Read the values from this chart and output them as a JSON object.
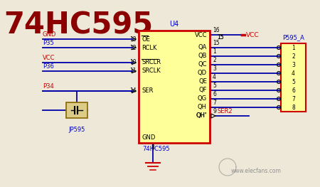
{
  "title": "74HC595",
  "title_color": "#8B0000",
  "bg_color": "#EDE8D8",
  "chip_label": "U4",
  "chip_sublabel": "74HC595",
  "chip_fill": "#FFFF99",
  "chip_edge": "#CC0000",
  "vcc_color": "#CC0000",
  "label_color_blue": "#0000CC",
  "label_color_red": "#CC0000",
  "wire_color": "#0000AA",
  "gnd_color": "#CC0000",
  "watermark": "www.elecfans.com",
  "left_pins": [
    {
      "name": "OE",
      "over": true,
      "pin": 13,
      "ext": "GND",
      "ext_col": "red",
      "gap_before": false
    },
    {
      "name": "RCLK",
      "over": false,
      "pin": 12,
      "ext": "P35",
      "ext_col": "blue",
      "gap_before": false
    },
    {
      "name": "SRCLR",
      "over": true,
      "pin": 10,
      "ext": "VCC",
      "ext_col": "red",
      "gap_before": true
    },
    {
      "name": "SRCLK",
      "over": false,
      "pin": 11,
      "ext": "P36",
      "ext_col": "blue",
      "gap_before": false
    },
    {
      "name": "SER",
      "over": false,
      "pin": 14,
      "ext": "P34",
      "ext_col": "red",
      "gap_before": true
    }
  ],
  "right_pins": [
    {
      "name": "VCC",
      "pin": 16,
      "type": "vcc"
    },
    {
      "name": "QA",
      "pin": 15,
      "type": "out"
    },
    {
      "name": "QB",
      "pin": 1,
      "type": "out"
    },
    {
      "name": "QC",
      "pin": 2,
      "type": "out"
    },
    {
      "name": "QD",
      "pin": 3,
      "type": "out"
    },
    {
      "name": "QE",
      "pin": 4,
      "type": "out"
    },
    {
      "name": "QF",
      "pin": 5,
      "type": "out"
    },
    {
      "name": "QG",
      "pin": 6,
      "type": "out"
    },
    {
      "name": "QH",
      "pin": 7,
      "type": "out"
    },
    {
      "name": "QH'",
      "pin": 9,
      "type": "ser2"
    }
  ],
  "conn_pins": [
    1,
    2,
    3,
    4,
    5,
    6,
    7,
    8
  ]
}
